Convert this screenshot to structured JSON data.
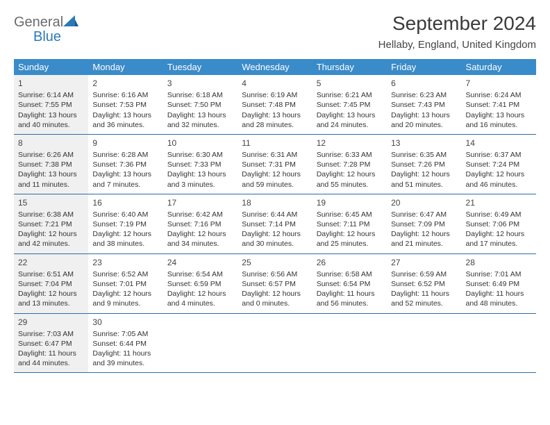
{
  "logo": {
    "gray": "General",
    "blue": "Blue"
  },
  "title": "September 2024",
  "location": "Hellaby, England, United Kingdom",
  "header_color": "#3a8bc9",
  "border_color": "#2a6ca8",
  "shade_color": "#f0f0f0",
  "day_headers": [
    "Sunday",
    "Monday",
    "Tuesday",
    "Wednesday",
    "Thursday",
    "Friday",
    "Saturday"
  ],
  "weeks": [
    [
      {
        "num": "1",
        "shade": true,
        "sunrise": "Sunrise: 6:14 AM",
        "sunset": "Sunset: 7:55 PM",
        "daylight": "Daylight: 13 hours and 40 minutes."
      },
      {
        "num": "2",
        "sunrise": "Sunrise: 6:16 AM",
        "sunset": "Sunset: 7:53 PM",
        "daylight": "Daylight: 13 hours and 36 minutes."
      },
      {
        "num": "3",
        "sunrise": "Sunrise: 6:18 AM",
        "sunset": "Sunset: 7:50 PM",
        "daylight": "Daylight: 13 hours and 32 minutes."
      },
      {
        "num": "4",
        "sunrise": "Sunrise: 6:19 AM",
        "sunset": "Sunset: 7:48 PM",
        "daylight": "Daylight: 13 hours and 28 minutes."
      },
      {
        "num": "5",
        "sunrise": "Sunrise: 6:21 AM",
        "sunset": "Sunset: 7:45 PM",
        "daylight": "Daylight: 13 hours and 24 minutes."
      },
      {
        "num": "6",
        "sunrise": "Sunrise: 6:23 AM",
        "sunset": "Sunset: 7:43 PM",
        "daylight": "Daylight: 13 hours and 20 minutes."
      },
      {
        "num": "7",
        "sunrise": "Sunrise: 6:24 AM",
        "sunset": "Sunset: 7:41 PM",
        "daylight": "Daylight: 13 hours and 16 minutes."
      }
    ],
    [
      {
        "num": "8",
        "shade": true,
        "sunrise": "Sunrise: 6:26 AM",
        "sunset": "Sunset: 7:38 PM",
        "daylight": "Daylight: 13 hours and 11 minutes."
      },
      {
        "num": "9",
        "sunrise": "Sunrise: 6:28 AM",
        "sunset": "Sunset: 7:36 PM",
        "daylight": "Daylight: 13 hours and 7 minutes."
      },
      {
        "num": "10",
        "sunrise": "Sunrise: 6:30 AM",
        "sunset": "Sunset: 7:33 PM",
        "daylight": "Daylight: 13 hours and 3 minutes."
      },
      {
        "num": "11",
        "sunrise": "Sunrise: 6:31 AM",
        "sunset": "Sunset: 7:31 PM",
        "daylight": "Daylight: 12 hours and 59 minutes."
      },
      {
        "num": "12",
        "sunrise": "Sunrise: 6:33 AM",
        "sunset": "Sunset: 7:28 PM",
        "daylight": "Daylight: 12 hours and 55 minutes."
      },
      {
        "num": "13",
        "sunrise": "Sunrise: 6:35 AM",
        "sunset": "Sunset: 7:26 PM",
        "daylight": "Daylight: 12 hours and 51 minutes."
      },
      {
        "num": "14",
        "sunrise": "Sunrise: 6:37 AM",
        "sunset": "Sunset: 7:24 PM",
        "daylight": "Daylight: 12 hours and 46 minutes."
      }
    ],
    [
      {
        "num": "15",
        "shade": true,
        "sunrise": "Sunrise: 6:38 AM",
        "sunset": "Sunset: 7:21 PM",
        "daylight": "Daylight: 12 hours and 42 minutes."
      },
      {
        "num": "16",
        "sunrise": "Sunrise: 6:40 AM",
        "sunset": "Sunset: 7:19 PM",
        "daylight": "Daylight: 12 hours and 38 minutes."
      },
      {
        "num": "17",
        "sunrise": "Sunrise: 6:42 AM",
        "sunset": "Sunset: 7:16 PM",
        "daylight": "Daylight: 12 hours and 34 minutes."
      },
      {
        "num": "18",
        "sunrise": "Sunrise: 6:44 AM",
        "sunset": "Sunset: 7:14 PM",
        "daylight": "Daylight: 12 hours and 30 minutes."
      },
      {
        "num": "19",
        "sunrise": "Sunrise: 6:45 AM",
        "sunset": "Sunset: 7:11 PM",
        "daylight": "Daylight: 12 hours and 25 minutes."
      },
      {
        "num": "20",
        "sunrise": "Sunrise: 6:47 AM",
        "sunset": "Sunset: 7:09 PM",
        "daylight": "Daylight: 12 hours and 21 minutes."
      },
      {
        "num": "21",
        "sunrise": "Sunrise: 6:49 AM",
        "sunset": "Sunset: 7:06 PM",
        "daylight": "Daylight: 12 hours and 17 minutes."
      }
    ],
    [
      {
        "num": "22",
        "shade": true,
        "sunrise": "Sunrise: 6:51 AM",
        "sunset": "Sunset: 7:04 PM",
        "daylight": "Daylight: 12 hours and 13 minutes."
      },
      {
        "num": "23",
        "sunrise": "Sunrise: 6:52 AM",
        "sunset": "Sunset: 7:01 PM",
        "daylight": "Daylight: 12 hours and 9 minutes."
      },
      {
        "num": "24",
        "sunrise": "Sunrise: 6:54 AM",
        "sunset": "Sunset: 6:59 PM",
        "daylight": "Daylight: 12 hours and 4 minutes."
      },
      {
        "num": "25",
        "sunrise": "Sunrise: 6:56 AM",
        "sunset": "Sunset: 6:57 PM",
        "daylight": "Daylight: 12 hours and 0 minutes."
      },
      {
        "num": "26",
        "sunrise": "Sunrise: 6:58 AM",
        "sunset": "Sunset: 6:54 PM",
        "daylight": "Daylight: 11 hours and 56 minutes."
      },
      {
        "num": "27",
        "sunrise": "Sunrise: 6:59 AM",
        "sunset": "Sunset: 6:52 PM",
        "daylight": "Daylight: 11 hours and 52 minutes."
      },
      {
        "num": "28",
        "sunrise": "Sunrise: 7:01 AM",
        "sunset": "Sunset: 6:49 PM",
        "daylight": "Daylight: 11 hours and 48 minutes."
      }
    ],
    [
      {
        "num": "29",
        "shade": true,
        "sunrise": "Sunrise: 7:03 AM",
        "sunset": "Sunset: 6:47 PM",
        "daylight": "Daylight: 11 hours and 44 minutes."
      },
      {
        "num": "30",
        "sunrise": "Sunrise: 7:05 AM",
        "sunset": "Sunset: 6:44 PM",
        "daylight": "Daylight: 11 hours and 39 minutes."
      },
      {
        "empty": true
      },
      {
        "empty": true
      },
      {
        "empty": true
      },
      {
        "empty": true
      },
      {
        "empty": true
      }
    ]
  ]
}
